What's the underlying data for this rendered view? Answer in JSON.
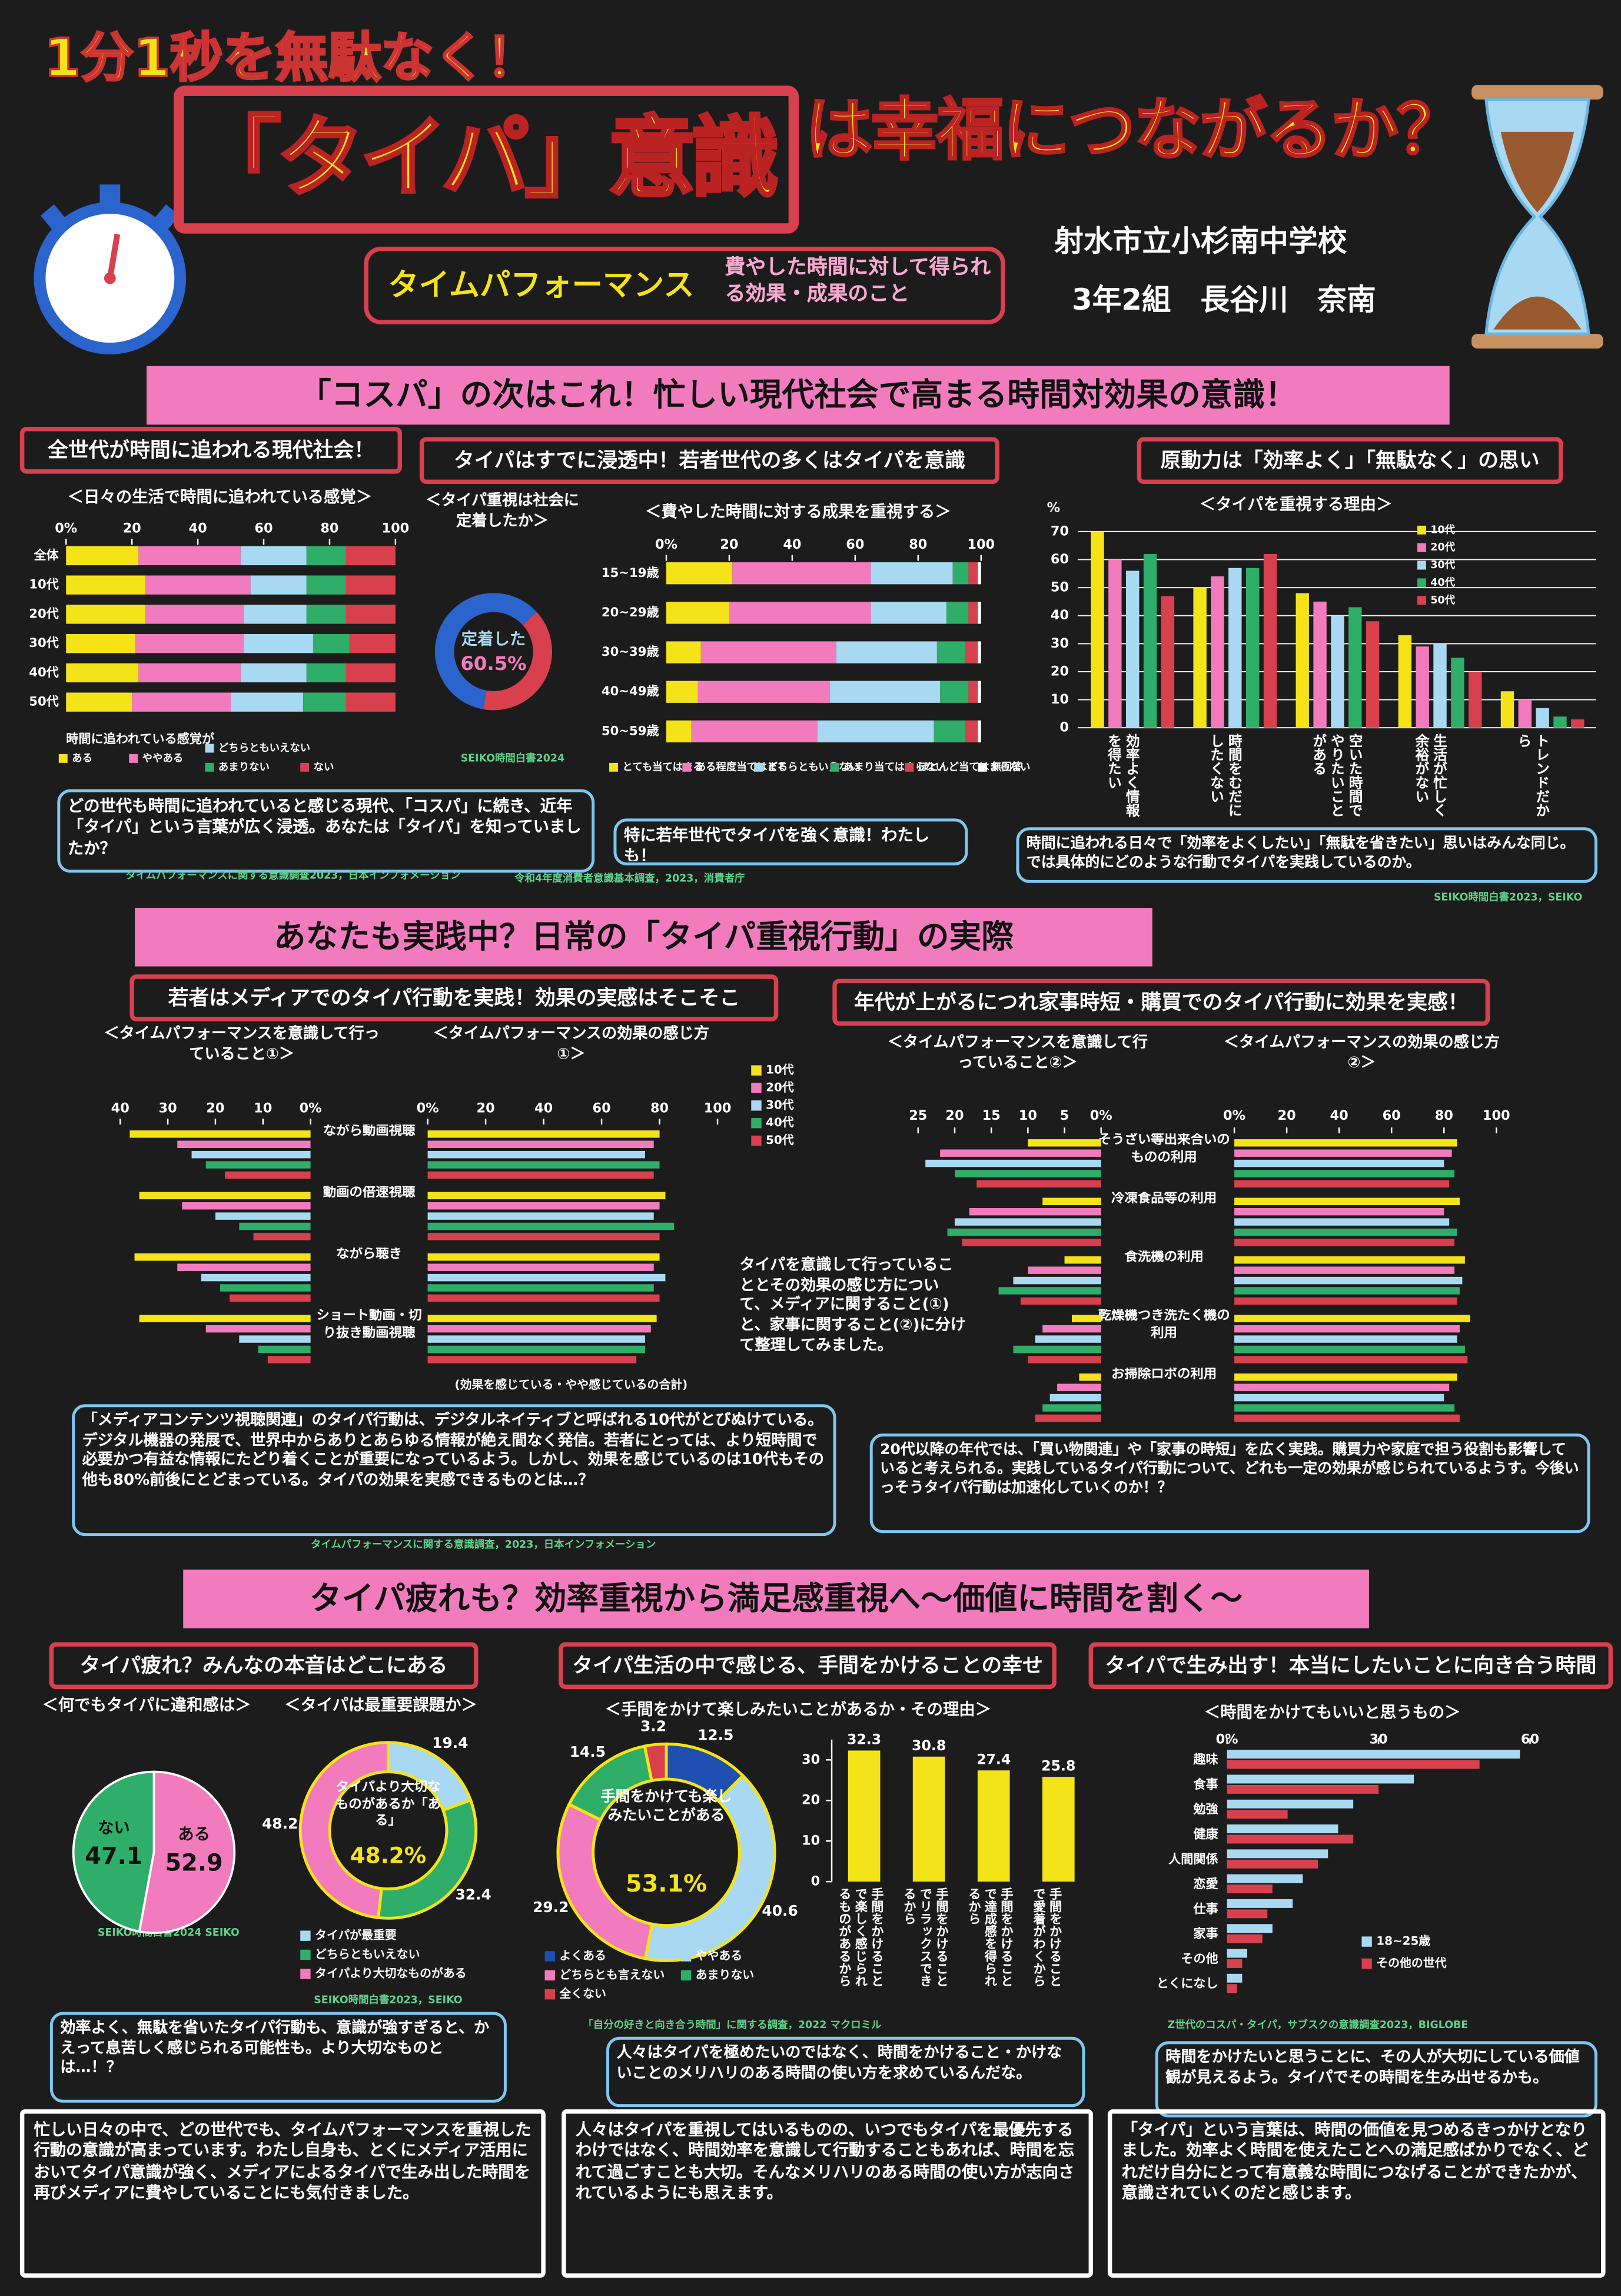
{
  "header": {
    "kicker": "1分1秒を無駄なく！",
    "title_main": "「タイパ」意識",
    "title_rest": "は幸福につながるか？",
    "term": "タイムパフォーマンス",
    "term_definition": "費やした時間に対して得られる効果・成果のこと",
    "school": "射水市立小杉南中学校",
    "author": "3年2組　長谷川　奈南"
  },
  "sections": [
    {
      "title": "「コスパ」の次はこれ！忙しい現代社会で高まる時間対効果の意識！",
      "panels": [
        {
          "heading": "全世代が時間に追われる現代社会！",
          "note": "どの世代も時間に追われていると感じる現代、「コスパ」に続き、近年「タイパ」という言葉が広く浸透。あなたは「タイパ」を知っていましたか？",
          "source": "タイムパフォーマンスに関する意識調査2023，日本インフォメーション"
        },
        {
          "heading": "タイパはすでに浸透中！若者世代の多くはタイパを意識",
          "note": "特に若年世代でタイパを強く意識！わたしも！",
          "source": "令和4年度消費者意識基本調査，2023，消費者庁"
        },
        {
          "heading": "原動力は「効率よく」「無駄なく」の思い",
          "note": "時間に追われる日々で「効率をよくしたい」「無駄を省きたい」思いはみんな同じ。では具体的にどのような行動でタイパを実践しているのか。",
          "source": "SEIKO時間白書2023，SEIKO"
        }
      ]
    },
    {
      "title": "あなたも実践中？日常の「タイパ重視行動」の実際",
      "panels": [
        {
          "heading": "若者はメディアでのタイパ行動を実践！効果の実感はそこそこ",
          "note": "「メディアコンテンツ視聴関連」のタイパ行動は、デジタルネイティブと呼ばれる10代がとびぬけている。デジタル機器の発展で、世界中からありとあらゆる情報が絶え間なく発信。若者にとっては、より短時間で必要かつ有益な情報にたどり着くことが重要になっているよう。しかし、効果を感じているのは10代もその他も80%前後にとどまっている。タイパの効果を実感できるものとは…？",
          "source": "タイムパフォーマンスに関する意識調査，2023，日本インフォメーション"
        },
        {
          "heading": "年代が上がるにつれ家事時短・購買でのタイパ行動に効果を実感！",
          "note": "20代以降の年代では、「買い物関連」や「家事の時短」を広く実践。購買力や家庭で担う役割も影響していると考えられる。実践しているタイパ行動について、どれも一定の効果が感じられているようす。今後いっそうタイパ行動は加速化していくのか！？"
        }
      ],
      "middle_text": "タイパを意識して行っていることとその効果の感じ方について、メディアに関すること(①)と、家事に関すること(②)に分けて整理してみました。",
      "footnote": "(効果を感じている・やや感じているの合計)"
    },
    {
      "title": "タイパ疲れも？効率重視から満足感重視へ～価値に時間を割く～",
      "panels": [
        {
          "heading": "タイパ疲れ？みんなの本音はどこにある",
          "note": "効率よく、無駄を省いたタイパ行動も、意識が強すぎると、かえって息苦しく感じられる可能性も。より大切なものとは…！？"
        },
        {
          "heading": "タイパ生活の中で感じる、手間をかけることの幸せ",
          "note": "人々はタイパを極めたいのではなく、時間をかけること・かけないことのメリハリのある時間の使い方を求めているんだな。",
          "source": "「自分の好きと向き合う時間」に関する調査，2022 マクロミル"
        },
        {
          "heading": "タイパで生み出す！本当にしたいことに向き合う時間",
          "note": "時間をかけたいと思うことに、その人が大切にしている価値観が見えるよう。タイパでその時間を生み出せるかも。",
          "source": "Z世代のコスパ・タイパ，サブスクの意識調査2023，BIGLOBE"
        }
      ],
      "conclusions": [
        "忙しい日々の中で、どの世代でも、タイムパフォーマンスを重視した行動の意識が高まっています。わたし自身も、とくにメディア活用においてタイパ意識が強く、メディアによるタイパで生み出した時間を再びメディアに費やしていることにも気付きました。",
        "人々はタイパを重視してはいるものの、いつでもタイパを最優先するわけではなく、時間効率を意識して行動することもあれば、時間を忘れて過ごすことも大切。そんなメリハリのある時間の使い方が志向されているようにも思えます。",
        "「タイパ」という言葉は、時間の価値を見つめるきっかけとなりました。効率よく時間を使えたことへの満足感ばかりでなく、どれだけ自分にとって有意義な時間につなげることができたかが、意識されていくのだと感じます。"
      ]
    }
  ],
  "chart_data": [
    {
      "type": "hbar_stacked",
      "title": "＜日々の生活で時間に追われている感覚＞",
      "categories": [
        "全体",
        "10代",
        "20代",
        "30代",
        "40代",
        "50代"
      ],
      "series": [
        {
          "name": "ある",
          "color": "#f5e31a",
          "values": [
            22,
            24,
            24,
            21,
            22,
            20
          ]
        },
        {
          "name": "ややある",
          "color": "#f27bbd",
          "values": [
            31,
            32,
            30,
            33,
            31,
            30
          ]
        },
        {
          "name": "どちらともいえない",
          "color": "#a9d9f2",
          "values": [
            20,
            17,
            19,
            21,
            20,
            22
          ]
        },
        {
          "name": "あまりない",
          "color": "#2fae6a",
          "values": [
            12,
            12,
            12,
            11,
            12,
            13
          ]
        },
        {
          "name": "ない",
          "color": "#d9404e",
          "values": [
            15,
            15,
            15,
            14,
            15,
            15
          ]
        }
      ],
      "xlim": [
        0,
        100
      ],
      "xticks": [
        {
          "value": 0,
          "label": "0%"
        },
        20,
        40,
        60,
        80,
        100
      ],
      "legend_title": "時間に追われている感覚が"
    },
    {
      "type": "donut",
      "title": "＜タイパ重視は社会に定着したか＞",
      "values": [
        60.5
      ],
      "value_labels": [
        "60.5%"
      ],
      "colors": [
        "#2a64cc"
      ],
      "track_color": "#d9404e",
      "center_label": "定着した",
      "source": "SEIKO時間白書2024"
    },
    {
      "type": "hbar_stacked",
      "title": "＜費やした時間に対する成果を重視する＞",
      "categories": [
        "15~19歳",
        "20~29歳",
        "30~39歳",
        "40~49歳",
        "50~59歳"
      ],
      "series": [
        {
          "name": "とても当てはまる",
          "color": "#f5e31a",
          "values": [
            21,
            20,
            11,
            10,
            8
          ]
        },
        {
          "name": "ある程度当てはまる",
          "color": "#f27bbd",
          "values": [
            44,
            45,
            43,
            42,
            40
          ]
        },
        {
          "name": "どちらともいえない",
          "color": "#a9d9f2",
          "values": [
            26,
            24,
            32,
            35,
            37
          ]
        },
        {
          "name": "あまり当てはまらない",
          "color": "#2fae6a",
          "values": [
            5,
            7,
            9,
            9,
            10
          ]
        },
        {
          "name": "ほとんど当てはまらない",
          "color": "#d9404e",
          "values": [
            3,
            3,
            4,
            3,
            4
          ]
        },
        {
          "name": "無回答",
          "color": "#ffffff",
          "values": [
            1,
            1,
            1,
            1,
            1
          ]
        }
      ],
      "xlim": [
        0,
        100
      ],
      "xticks": [
        {
          "value": 0,
          "label": "0%"
        },
        20,
        40,
        60,
        80,
        100
      ]
    },
    {
      "type": "bar_grouped",
      "title": "＜タイパを重視する理由＞",
      "ylabel": "%",
      "categories": [
        "効率よく情報を得たい",
        "時間をむだにしたくない",
        "空いた時間でやりたいことがある",
        "生活が忙しく余裕がない",
        "トレンドだから"
      ],
      "series": [
        {
          "name": "10代",
          "color": "#f5e31a",
          "values": [
            70,
            50,
            48,
            33,
            13
          ]
        },
        {
          "name": "20代",
          "color": "#f27bbd",
          "values": [
            60,
            54,
            45,
            29,
            10
          ]
        },
        {
          "name": "30代",
          "color": "#a9d9f2",
          "values": [
            56,
            57,
            40,
            30,
            7
          ]
        },
        {
          "name": "40代",
          "color": "#2fae6a",
          "values": [
            62,
            57,
            43,
            25,
            4
          ]
        },
        {
          "name": "50代",
          "color": "#d9404e",
          "values": [
            47,
            62,
            38,
            20,
            3
          ]
        }
      ],
      "ylim": [
        0,
        70
      ],
      "yticks": [
        0,
        10,
        20,
        30,
        40,
        50,
        60,
        70
      ],
      "grid": true
    },
    {
      "type": "hbar_grouped",
      "title": "＜タイムパフォーマンスを意識して行っていること①＞",
      "categories": [
        "ながら動画視聴",
        "動画の倍速視聴",
        "ながら聴き",
        "ショート動画・切り抜き動画視聴"
      ],
      "series": [
        {
          "name": "10代",
          "color": "#f5e31a",
          "values": [
            38,
            36,
            37,
            36
          ]
        },
        {
          "name": "20代",
          "color": "#f27bbd",
          "values": [
            28,
            27,
            28,
            22
          ]
        },
        {
          "name": "30代",
          "color": "#a9d9f2",
          "values": [
            25,
            20,
            23,
            15
          ]
        },
        {
          "name": "40代",
          "color": "#2fae6a",
          "values": [
            22,
            15,
            19,
            11
          ]
        },
        {
          "name": "50代",
          "color": "#d9404e",
          "values": [
            18,
            12,
            17,
            9
          ]
        }
      ],
      "xlim": [
        0,
        40
      ],
      "xticks": [
        {
          "value": 0,
          "label": "0%"
        },
        10,
        20,
        30,
        40
      ],
      "xreverse": true
    },
    {
      "type": "hbar_grouped",
      "title": "＜タイムパフォーマンスの効果の感じ方①＞",
      "categories": [
        "ながら動画視聴",
        "動画の倍速視聴",
        "ながら聴き",
        "ショート動画・切り抜き動画視聴"
      ],
      "series": [
        {
          "name": "10代",
          "color": "#f5e31a",
          "values": [
            80,
            82,
            80,
            79
          ]
        },
        {
          "name": "20代",
          "color": "#f27bbd",
          "values": [
            78,
            80,
            78,
            77
          ]
        },
        {
          "name": "30代",
          "color": "#a9d9f2",
          "values": [
            75,
            78,
            82,
            75
          ]
        },
        {
          "name": "40代",
          "color": "#2fae6a",
          "values": [
            80,
            85,
            78,
            75
          ]
        },
        {
          "name": "50代",
          "color": "#d9404e",
          "values": [
            78,
            80,
            80,
            72
          ]
        }
      ],
      "xlim": [
        0,
        100
      ],
      "xticks": [
        {
          "value": 0,
          "label": "0%"
        },
        20,
        40,
        60,
        80,
        100
      ]
    },
    {
      "type": "hbar_grouped",
      "title": "＜タイムパフォーマンスを意識して行っていること②＞",
      "categories": [
        "そうざい等出来合いのものの利用",
        "冷凍食品等の利用",
        "食洗機の利用",
        "乾燥機つき洗たく機の利用",
        "お掃除ロボの利用"
      ],
      "series": [
        {
          "name": "10代",
          "color": "#f5e31a",
          "values": [
            10,
            8,
            5,
            4,
            3
          ]
        },
        {
          "name": "20代",
          "color": "#f27bbd",
          "values": [
            22,
            18,
            10,
            8,
            6
          ]
        },
        {
          "name": "30代",
          "color": "#a9d9f2",
          "values": [
            24,
            20,
            12,
            9,
            7
          ]
        },
        {
          "name": "40代",
          "color": "#2fae6a",
          "values": [
            20,
            21,
            14,
            12,
            8
          ]
        },
        {
          "name": "50代",
          "color": "#d9404e",
          "values": [
            17,
            19,
            11,
            10,
            9
          ]
        }
      ],
      "xlim": [
        0,
        25
      ],
      "xticks": [
        {
          "value": 0,
          "label": "0%"
        },
        5,
        10,
        15,
        20,
        25
      ],
      "xreverse": true
    },
    {
      "type": "hbar_grouped",
      "title": "＜タイムパフォーマンスの効果の感じ方②＞",
      "categories": [
        "そうざい等出来合いのものの利用",
        "冷凍食品等の利用",
        "食洗機の利用",
        "乾燥機つき洗たく機の利用",
        "お掃除ロボの利用"
      ],
      "series": [
        {
          "name": "10代",
          "color": "#f5e31a",
          "values": [
            85,
            86,
            88,
            90,
            85
          ]
        },
        {
          "name": "20代",
          "color": "#f27bbd",
          "values": [
            83,
            80,
            84,
            86,
            82
          ]
        },
        {
          "name": "30代",
          "color": "#a9d9f2",
          "values": [
            80,
            82,
            87,
            85,
            80
          ]
        },
        {
          "name": "40代",
          "color": "#2fae6a",
          "values": [
            84,
            85,
            86,
            88,
            84
          ]
        },
        {
          "name": "50代",
          "color": "#d9404e",
          "values": [
            82,
            84,
            85,
            89,
            86
          ]
        }
      ],
      "xlim": [
        0,
        100
      ],
      "xticks": [
        {
          "value": 0,
          "label": "0%"
        },
        20,
        40,
        60,
        80,
        100
      ]
    },
    {
      "type": "pie",
      "title": "＜何でもタイパに違和感は＞",
      "categories": [
        "ある",
        "ない"
      ],
      "values": [
        52.9,
        47.1
      ],
      "colors": [
        "#f27bbd",
        "#2fae6a"
      ],
      "source": "SEIKO時間白書2024 SEIKO"
    },
    {
      "type": "donut",
      "title": "＜タイパは最重要課題か＞",
      "categories": [
        "タイパが最重要",
        "どちらともいえない",
        "タイパより大切なものがある"
      ],
      "values": [
        19.4,
        32.4,
        48.2
      ],
      "colors": [
        "#a9d9f2",
        "#2fae6a",
        "#f27bbd"
      ],
      "center_label": "タイパより大切なものがあるか「ある」",
      "center_value": "48.2%",
      "source": "SEIKO時間白書2023，SEIKO"
    },
    {
      "type": "donut",
      "title": "＜手間をかけて楽しみたいことがあるか・その理由＞",
      "categories": [
        "よくある",
        "ややある",
        "どちらとも言えない",
        "あまりない",
        "全くない"
      ],
      "values": [
        12.5,
        40.6,
        29.2,
        14.5,
        3.2
      ],
      "colors": [
        "#1f4fb0",
        "#a9d9f2",
        "#f27bbd",
        "#2fae6a",
        "#d9404e"
      ],
      "center_label": "手間をかけても楽しみたいことがある",
      "center_value": "53.1%"
    },
    {
      "type": "bar",
      "categories": [
        "手間をかけることで楽しく感じられるものがあるから",
        "手間をかけることでリラックスできるから",
        "手間をかけることで達成感を得られるから",
        "手間をかけることで愛着がわくから"
      ],
      "values": [
        32.3,
        30.8,
        27.4,
        25.8
      ],
      "color": "#f5e31a",
      "ylim": [
        0,
        35
      ],
      "yticks": [
        0,
        10,
        20,
        30
      ]
    },
    {
      "type": "hbar_grouped",
      "title": "＜時間をかけてもいいと思うもの＞",
      "categories": [
        "趣味",
        "食事",
        "勉強",
        "健康",
        "人間関係",
        "恋愛",
        "仕事",
        "家事",
        "その他",
        "とくになし"
      ],
      "series": [
        {
          "name": "18~25歳",
          "color": "#a9d9f2",
          "values": [
            58,
            37,
            25,
            22,
            20,
            15,
            13,
            9,
            4,
            3
          ]
        },
        {
          "name": "その他の世代",
          "color": "#d9404e",
          "values": [
            50,
            30,
            12,
            25,
            18,
            9,
            8,
            7,
            3,
            2
          ]
        }
      ],
      "xlim": [
        0,
        60
      ],
      "xticks": [
        {
          "value": 0,
          "label": "0%"
        },
        30,
        60
      ]
    }
  ]
}
